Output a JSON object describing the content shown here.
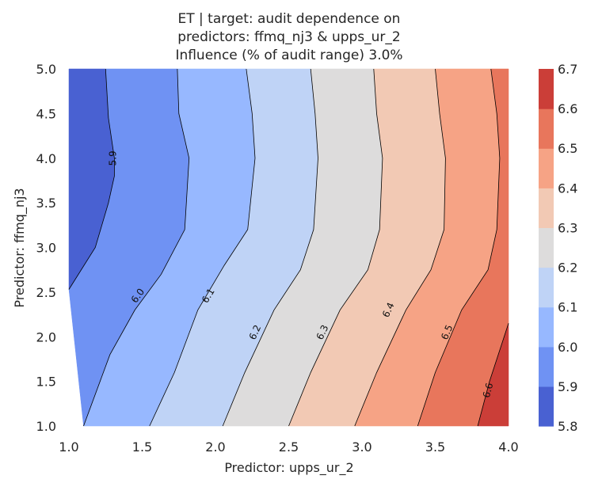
{
  "chart_data": {
    "type": "contour",
    "title": [
      "ET | target: audit dependence on",
      "predictors: ffmq_nj3 & upps_ur_2",
      "Influence (% of audit range) 3.0%"
    ],
    "xlabel": "Predictor: upps_ur_2",
    "ylabel": "Predictor: ffmq_nj3",
    "xlim": [
      1.0,
      4.0
    ],
    "ylim": [
      1.0,
      5.0
    ],
    "xticks": [
      "1.0",
      "1.5",
      "2.0",
      "2.5",
      "3.0",
      "3.5",
      "4.0"
    ],
    "yticks": [
      "1.0",
      "1.5",
      "2.0",
      "2.5",
      "3.0",
      "3.5",
      "4.0",
      "4.5",
      "5.0"
    ],
    "levels": [
      5.8,
      5.9,
      6.0,
      6.1,
      6.2,
      6.3,
      6.4,
      6.5,
      6.6,
      6.7
    ],
    "colorbar_ticks": [
      "5.8",
      "5.9",
      "6.0",
      "6.1",
      "6.2",
      "6.3",
      "6.4",
      "6.5",
      "6.6",
      "6.7"
    ],
    "band_colors": [
      "#4961d2",
      "#6f92f3",
      "#97b8ff",
      "#bfd3f6",
      "#dddcdc",
      "#f2c9b4",
      "#f6a385",
      "#e8765c",
      "#cb3e38"
    ],
    "contours": [
      {
        "level": 5.9,
        "label": "5.9",
        "points": [
          [
            1.0,
            2.53
          ],
          [
            1.18,
            3.0
          ],
          [
            1.27,
            3.5
          ],
          [
            1.31,
            3.8
          ],
          [
            1.31,
            4.0
          ],
          [
            1.27,
            4.45
          ],
          [
            1.25,
            5.0
          ]
        ],
        "label_at": [
          1.3,
          4.0
        ]
      },
      {
        "level": 6.0,
        "label": "6.0",
        "points": [
          [
            1.1,
            1.0
          ],
          [
            1.28,
            1.8
          ],
          [
            1.45,
            2.3
          ],
          [
            1.63,
            2.7
          ],
          [
            1.79,
            3.2
          ],
          [
            1.82,
            4.0
          ],
          [
            1.75,
            4.5
          ],
          [
            1.74,
            5.0
          ]
        ],
        "label_at": [
          1.47,
          2.46
        ]
      },
      {
        "level": 6.1,
        "label": "6.1",
        "points": [
          [
            1.55,
            1.0
          ],
          [
            1.72,
            1.6
          ],
          [
            1.88,
            2.3
          ],
          [
            2.06,
            2.8
          ],
          [
            2.22,
            3.2
          ],
          [
            2.27,
            4.0
          ],
          [
            2.25,
            4.5
          ],
          [
            2.21,
            5.0
          ]
        ],
        "label_at": [
          1.95,
          2.46
        ]
      },
      {
        "level": 6.2,
        "label": "6.2",
        "points": [
          [
            2.05,
            1.0
          ],
          [
            2.2,
            1.6
          ],
          [
            2.4,
            2.3
          ],
          [
            2.58,
            2.75
          ],
          [
            2.67,
            3.2
          ],
          [
            2.7,
            4.0
          ],
          [
            2.68,
            4.5
          ],
          [
            2.65,
            5.0
          ]
        ],
        "label_at": [
          2.27,
          2.05
        ]
      },
      {
        "level": 6.3,
        "label": "6.3",
        "points": [
          [
            2.5,
            1.0
          ],
          [
            2.65,
            1.6
          ],
          [
            2.85,
            2.3
          ],
          [
            3.04,
            2.75
          ],
          [
            3.12,
            3.2
          ],
          [
            3.14,
            4.0
          ],
          [
            3.1,
            4.5
          ],
          [
            3.08,
            5.0
          ]
        ],
        "label_at": [
          2.73,
          2.05
        ]
      },
      {
        "level": 6.4,
        "label": "6.4",
        "points": [
          [
            2.95,
            1.0
          ],
          [
            3.1,
            1.6
          ],
          [
            3.3,
            2.3
          ],
          [
            3.47,
            2.75
          ],
          [
            3.56,
            3.2
          ],
          [
            3.57,
            4.0
          ],
          [
            3.53,
            4.5
          ],
          [
            3.5,
            5.0
          ]
        ],
        "label_at": [
          3.18,
          2.3
        ]
      },
      {
        "level": 6.5,
        "label": "6.5",
        "points": [
          [
            3.38,
            1.0
          ],
          [
            3.5,
            1.6
          ],
          [
            3.68,
            2.3
          ],
          [
            3.86,
            2.75
          ],
          [
            3.92,
            3.2
          ],
          [
            3.94,
            4.0
          ],
          [
            3.92,
            4.5
          ],
          [
            3.88,
            5.0
          ]
        ],
        "label_at": [
          3.58,
          2.05
        ]
      },
      {
        "level": 6.6,
        "label": "6.6",
        "points": [
          [
            3.79,
            1.0
          ],
          [
            3.87,
            1.5
          ],
          [
            4.0,
            2.15
          ]
        ],
        "label_at": [
          3.86,
          1.4
        ]
      }
    ]
  }
}
